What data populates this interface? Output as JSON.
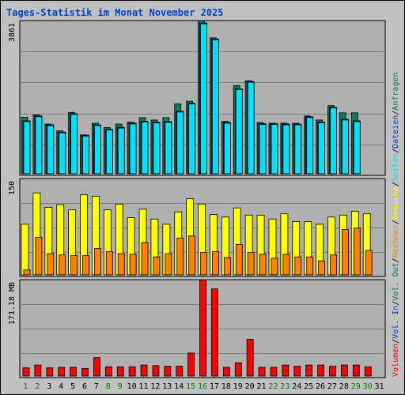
{
  "title": "Tages-Statistik im Monat November 2025",
  "colors": {
    "background": "#c0c0c0",
    "plot_bg": "#b0b0b0",
    "title": "#0044cc",
    "anfragen": "#00805a",
    "dateien": "#0044cc",
    "seiten": "#00e0ff",
    "besuche": "#ffff00",
    "rechner": "#ff8000",
    "volumen": "#ff0000",
    "weekday": "#000000",
    "weekend": "#008000"
  },
  "legend_right": {
    "anfragen": "Anfragen",
    "dateien": "Dateien",
    "seiten": "Seiten",
    "besuche": "Besuche",
    "rechner": "Rechner",
    "vol_out": "Vol. Out",
    "vol_in": "Vol. In",
    "volumen": "Volumen",
    "sep": "/"
  },
  "chart_data": [
    {
      "type": "bar",
      "panel": "top",
      "ylabel": "3861",
      "ylim": [
        0,
        3861
      ],
      "grid": true,
      "categories": [
        "1",
        "2",
        "3",
        "4",
        "5",
        "6",
        "7",
        "8",
        "9",
        "10",
        "11",
        "12",
        "13",
        "14",
        "15",
        "16",
        "17",
        "18",
        "19",
        "20",
        "21",
        "22",
        "23",
        "24",
        "25",
        "26",
        "27",
        "28",
        "29",
        "30",
        "31"
      ],
      "weekend_days": [
        1,
        2,
        8,
        9,
        15,
        16,
        22,
        23,
        29,
        30
      ],
      "series": [
        {
          "name": "Anfragen",
          "values": [
            1450,
            1510,
            1280,
            1110,
            1570,
            1010,
            1300,
            1190,
            1280,
            1330,
            1440,
            1380,
            1440,
            1780,
            1850,
            3861,
            3430,
            1350,
            2240,
            2360,
            1320,
            1300,
            1300,
            1300,
            1480,
            1380,
            1740,
            1560,
            1560,
            null,
            null
          ]
        },
        {
          "name": "Dateien",
          "values": [
            1360,
            1480,
            1260,
            1080,
            1540,
            1000,
            1260,
            1150,
            1200,
            1300,
            1350,
            1330,
            1340,
            1600,
            1800,
            3800,
            3400,
            1320,
            2160,
            2340,
            1290,
            1290,
            1280,
            1280,
            1460,
            1330,
            1700,
            1400,
            1360,
            null,
            null
          ]
        },
        {
          "name": "Seiten",
          "values": [
            1360,
            1480,
            1260,
            1080,
            1540,
            1000,
            1260,
            1150,
            1200,
            1300,
            1350,
            1330,
            1340,
            1600,
            1800,
            3800,
            3400,
            1320,
            2160,
            2340,
            1290,
            1290,
            1280,
            1280,
            1460,
            1330,
            1700,
            1400,
            1360,
            null,
            null
          ]
        }
      ]
    },
    {
      "type": "bar",
      "panel": "middle",
      "ylabel": "150",
      "ylim": [
        0,
        150
      ],
      "grid": true,
      "categories": [
        "1",
        "2",
        "3",
        "4",
        "5",
        "6",
        "7",
        "8",
        "9",
        "10",
        "11",
        "12",
        "13",
        "14",
        "15",
        "16",
        "17",
        "18",
        "19",
        "20",
        "21",
        "22",
        "23",
        "24",
        "25",
        "26",
        "27",
        "28",
        "29",
        "30",
        "31"
      ],
      "series": [
        {
          "name": "Besuche",
          "values": [
            80,
            128,
            106,
            110,
            102,
            125,
            123,
            102,
            111,
            90,
            103,
            88,
            80,
            99,
            119,
            111,
            95,
            91,
            105,
            94,
            94,
            88,
            96,
            84,
            84,
            80,
            91,
            94,
            100,
            96,
            null
          ]
        },
        {
          "name": "Rechner",
          "values": [
            10,
            60,
            35,
            33,
            32,
            32,
            43,
            38,
            35,
            34,
            52,
            30,
            35,
            59,
            62,
            37,
            38,
            29,
            49,
            37,
            34,
            28,
            34,
            30,
            30,
            24,
            33,
            72,
            74,
            40,
            null
          ]
        }
      ]
    },
    {
      "type": "bar",
      "panel": "bottom",
      "ylabel": "171.18 MB",
      "ylim": [
        0,
        171.18
      ],
      "grid": true,
      "categories": [
        "1",
        "2",
        "3",
        "4",
        "5",
        "6",
        "7",
        "8",
        "9",
        "10",
        "11",
        "12",
        "13",
        "14",
        "15",
        "16",
        "17",
        "18",
        "19",
        "20",
        "21",
        "22",
        "23",
        "24",
        "25",
        "26",
        "27",
        "28",
        "29",
        "30",
        "31"
      ],
      "series": [
        {
          "name": "Volumen",
          "values": [
            17,
            22,
            17,
            18,
            18,
            16,
            35,
            19,
            19,
            19,
            22,
            21,
            20,
            20,
            43,
            171.18,
            155,
            18,
            26,
            67,
            18,
            18,
            22,
            20,
            22,
            22,
            20,
            22,
            22,
            19,
            null
          ]
        }
      ]
    }
  ]
}
